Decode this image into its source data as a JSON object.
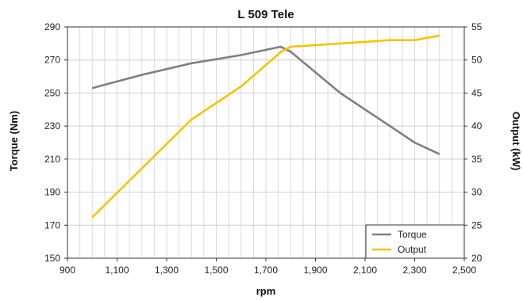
{
  "chart_data": {
    "type": "line",
    "title": "L 509 Tele",
    "xlabel": "rpm",
    "ylabel_left": "Torque (Nm)",
    "ylabel_right": "Output (kW)",
    "xlim": [
      900,
      2500
    ],
    "x_ticks": [
      900,
      1100,
      1300,
      1500,
      1700,
      1900,
      2100,
      2300,
      2500
    ],
    "x_tick_labels": [
      "900",
      "1,100",
      "1,300",
      "1,500",
      "1,700",
      "1,900",
      "2,100",
      "2,300",
      "2,500"
    ],
    "ylim_left": [
      150,
      290
    ],
    "y_ticks_left": [
      150,
      170,
      190,
      210,
      230,
      250,
      270,
      290
    ],
    "ylim_right": [
      20,
      55
    ],
    "y_ticks_right": [
      20,
      25,
      30,
      35,
      40,
      45,
      50,
      55
    ],
    "grid": true,
    "legend_position": "bottom-right",
    "series": [
      {
        "name": "Torque",
        "axis": "left",
        "color": "#7f7f7f",
        "points": [
          [
            1000,
            253
          ],
          [
            1200,
            261
          ],
          [
            1400,
            268
          ],
          [
            1600,
            273
          ],
          [
            1760,
            278
          ],
          [
            1800,
            275
          ],
          [
            2000,
            250
          ],
          [
            2100,
            240
          ],
          [
            2200,
            230
          ],
          [
            2300,
            220
          ],
          [
            2400,
            213
          ]
        ]
      },
      {
        "name": "Output",
        "axis": "right",
        "color": "#f5c400",
        "points": [
          [
            1000,
            26.2
          ],
          [
            1200,
            33.6
          ],
          [
            1400,
            41.0
          ],
          [
            1600,
            46.0
          ],
          [
            1760,
            51.2
          ],
          [
            1800,
            52.0
          ],
          [
            2000,
            52.5
          ],
          [
            2200,
            53.0
          ],
          [
            2300,
            53.0
          ],
          [
            2400,
            53.7
          ]
        ]
      }
    ]
  }
}
